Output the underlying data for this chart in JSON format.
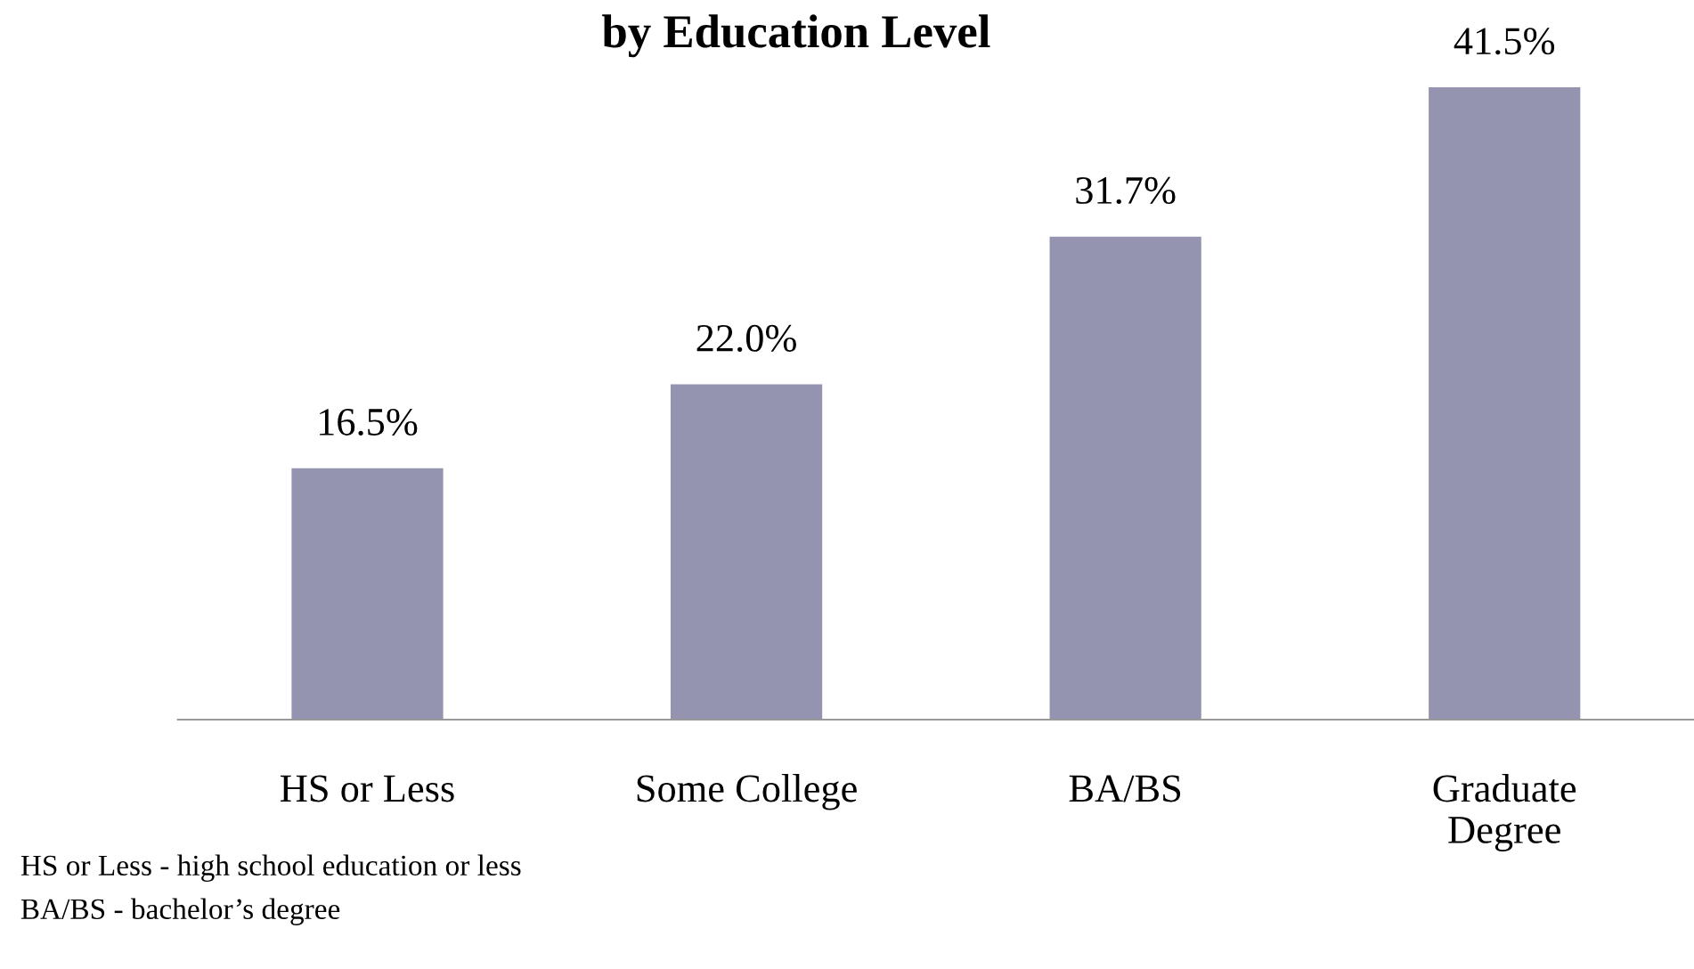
{
  "chart_data": {
    "type": "bar",
    "title": "by Education Level",
    "categories": [
      "HS or Less",
      "Some College",
      "BA/BS",
      "Graduate\nDegree"
    ],
    "values": [
      16.5,
      22.0,
      31.7,
      41.5
    ],
    "value_labels": [
      "16.5%",
      "22.0%",
      "31.7%",
      "41.5%"
    ],
    "color": "#9494b0",
    "annotations": [
      "HS or Less - high school education or less",
      "BA/BS - bachelor’s degree"
    ]
  }
}
